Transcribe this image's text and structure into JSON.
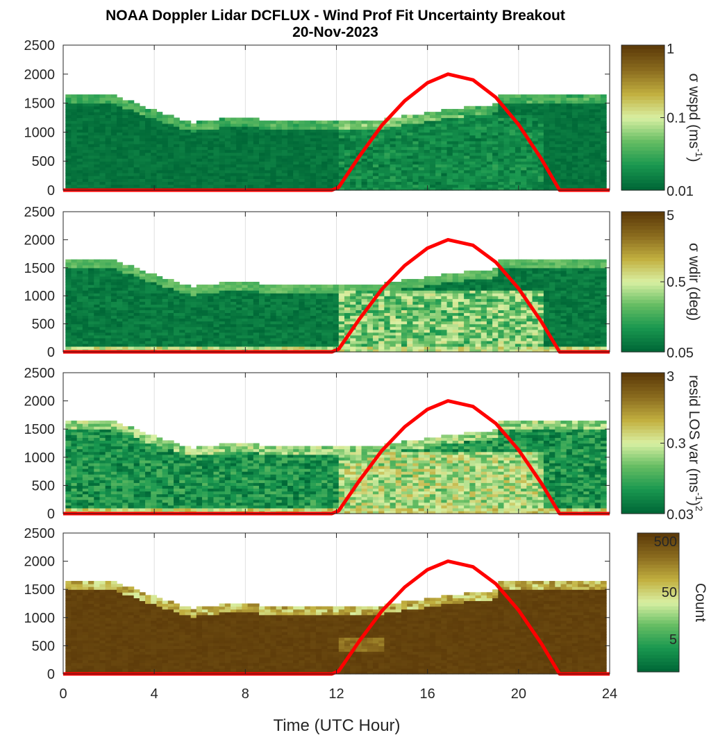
{
  "title_line1": "NOAA Doppler Lidar DCFLUX - Wind Prof Fit Uncertainty Breakout",
  "title_line2": "20-Nov-2023",
  "xlabel": "Time (UTC Hour)",
  "chart_data": {
    "type": "heatmap",
    "x_ticks": [
      0,
      4,
      8,
      12,
      16,
      20,
      24
    ],
    "xlim": [
      0,
      24
    ],
    "ylim": [
      0,
      2500
    ],
    "y_ticks": [
      0,
      500,
      1000,
      1500,
      2000,
      2500
    ],
    "colormap": [
      "#006837",
      "#1a9850",
      "#66bd63",
      "#d9f0a3",
      "#c2b040",
      "#8c6d1f",
      "#5e3c0a"
    ],
    "overlay_color": "#ff0000",
    "overlay_curve": {
      "x": [
        0,
        11.8,
        12.1,
        13,
        14,
        15,
        16,
        16.9,
        18,
        19,
        20,
        21,
        21.8,
        24
      ],
      "y": [
        0,
        0,
        50,
        580,
        1120,
        1540,
        1850,
        2000,
        1900,
        1600,
        1130,
        540,
        0,
        0
      ]
    },
    "panels": [
      {
        "cbar_ticks": [
          "1",
          "0.1",
          "0.01"
        ],
        "cbar_label": "σ wspd (ms",
        "cbar_label_sup": "-1",
        "cbar_label_end": ")",
        "field": "wspd"
      },
      {
        "cbar_ticks": [
          "5",
          "0.5",
          "0.05"
        ],
        "cbar_label": "σ wdir (deg)",
        "field": "wdir"
      },
      {
        "cbar_ticks": [
          "3",
          "0.3",
          "0.03"
        ],
        "cbar_label": "resid LOS var (ms",
        "cbar_label_sup": "-1",
        "cbar_label_end": ")",
        "cbar_label_sup2": "2",
        "field": "resid"
      },
      {
        "cbar_ticks": [
          "500",
          "50",
          "5"
        ],
        "cbar_label": "Count",
        "field": "count"
      }
    ]
  }
}
